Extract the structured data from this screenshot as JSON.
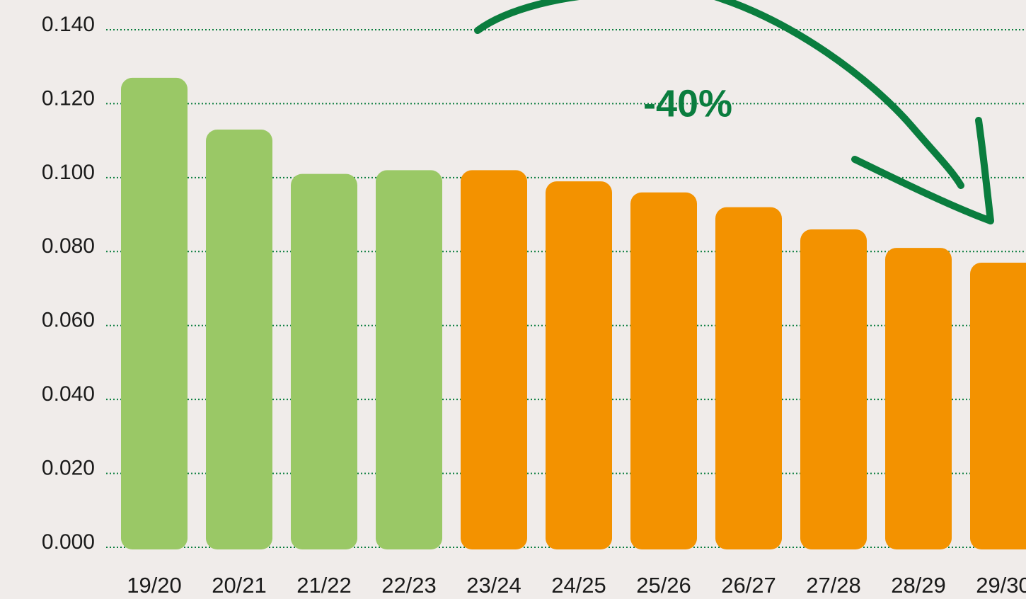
{
  "chart_data": {
    "type": "bar",
    "annotation": "-40%",
    "categories": [
      "19/20",
      "20/21",
      "21/22",
      "22/23",
      "23/24",
      "24/25",
      "25/26",
      "26/27",
      "27/28",
      "28/29",
      "29/30"
    ],
    "values": [
      0.127,
      0.113,
      0.101,
      0.102,
      0.102,
      0.099,
      0.096,
      0.092,
      0.086,
      0.081,
      0.077
    ],
    "colors": [
      "#9ac866",
      "#9ac866",
      "#9ac866",
      "#9ac866",
      "#f39200",
      "#f39200",
      "#f39200",
      "#f39200",
      "#f39200",
      "#f39200",
      "#f39200"
    ],
    "ylim": [
      0,
      0.14
    ],
    "yticks": [
      {
        "value": 0,
        "label": "0.000"
      },
      {
        "value": 0.02,
        "label": "0.020"
      },
      {
        "value": 0.04,
        "label": "0.040"
      },
      {
        "value": 0.06,
        "label": "0.060"
      },
      {
        "value": 0.08,
        "label": "0.080"
      },
      {
        "value": 0.1,
        "label": "0.100"
      },
      {
        "value": 0.12,
        "label": "0.120"
      },
      {
        "value": 0.14,
        "label": "0.140"
      }
    ],
    "grid": true
  }
}
